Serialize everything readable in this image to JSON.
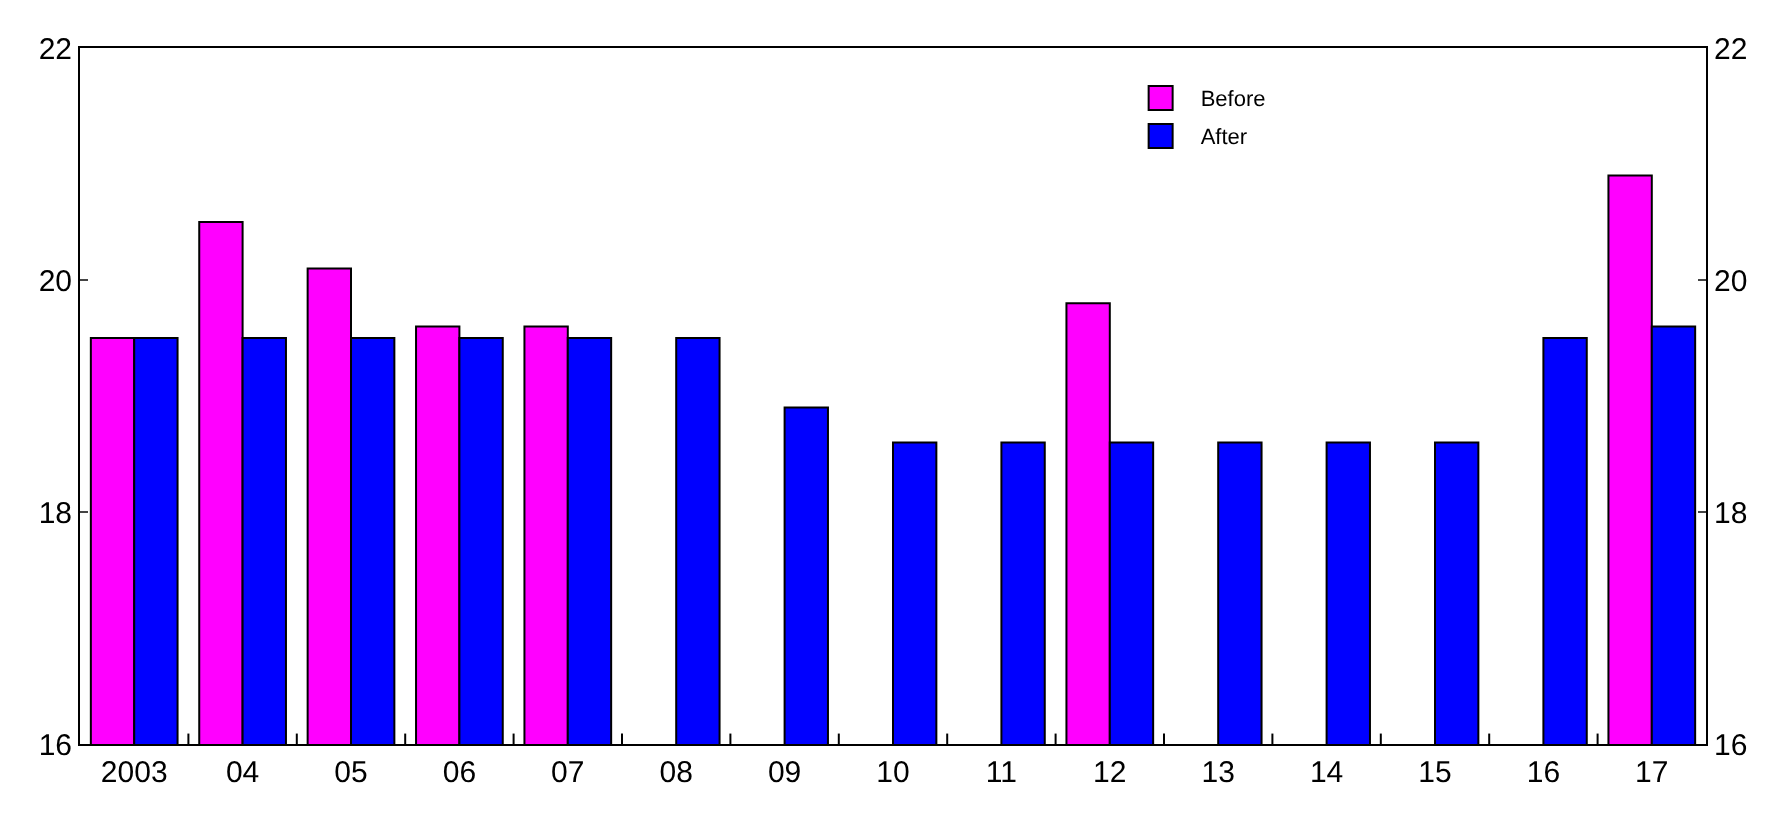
{
  "chart_data": {
    "type": "bar",
    "categories": [
      "2003",
      "04",
      "05",
      "06",
      "07",
      "08",
      "09",
      "10",
      "11",
      "12",
      "13",
      "14",
      "15",
      "16",
      "17"
    ],
    "series": [
      {
        "name": "Before",
        "color": "#ff00ff",
        "values": [
          19.5,
          20.5,
          20.1,
          19.6,
          19.6,
          null,
          null,
          null,
          null,
          19.8,
          null,
          null,
          null,
          null,
          20.9
        ]
      },
      {
        "name": "After",
        "color": "#0000ff",
        "values": [
          19.5,
          19.5,
          19.5,
          19.5,
          19.5,
          19.5,
          18.9,
          18.6,
          18.6,
          18.6,
          18.6,
          18.6,
          18.6,
          19.5,
          19.6
        ]
      }
    ],
    "ylim": [
      16,
      22
    ],
    "yticks": [
      16,
      18,
      20,
      22
    ],
    "y2lim": [
      16,
      22
    ],
    "y2ticks": [
      16,
      18,
      20,
      22
    ],
    "legend": "top right"
  }
}
